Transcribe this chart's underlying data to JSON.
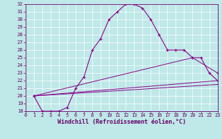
{
  "xlabel": "Windchill (Refroidissement éolien,°C)",
  "xlim": [
    0,
    23
  ],
  "ylim": [
    18,
    32
  ],
  "yticks": [
    18,
    19,
    20,
    21,
    22,
    23,
    24,
    25,
    26,
    27,
    28,
    29,
    30,
    31,
    32
  ],
  "xticks": [
    0,
    1,
    2,
    3,
    4,
    5,
    6,
    7,
    8,
    9,
    10,
    11,
    12,
    13,
    14,
    15,
    16,
    17,
    18,
    19,
    20,
    21,
    22,
    23
  ],
  "bg_color": "#bfe8e8",
  "line_color": "#880088",
  "grid_color": "#ffffff",
  "curves": {
    "main": {
      "x": [
        1,
        2,
        3,
        4,
        5,
        6,
        7,
        8,
        9,
        10,
        11,
        12,
        13,
        14,
        15,
        16,
        17,
        18,
        19,
        20,
        21,
        22,
        23
      ],
      "y": [
        20,
        18,
        18,
        18,
        18.5,
        21,
        22.5,
        26,
        27.5,
        30,
        31,
        32,
        32,
        31.5,
        30,
        28,
        26,
        26,
        26,
        25,
        25,
        23,
        22
      ]
    },
    "line2": {
      "x": [
        1,
        23
      ],
      "y": [
        20,
        22
      ]
    },
    "line3": {
      "x": [
        1,
        20,
        23
      ],
      "y": [
        20,
        25,
        23
      ]
    },
    "line4": {
      "x": [
        1,
        23
      ],
      "y": [
        20,
        21.5
      ]
    }
  },
  "tick_fontsize": 5,
  "xlabel_fontsize": 6,
  "tick_color": "#660066",
  "spine_color": "#660066"
}
